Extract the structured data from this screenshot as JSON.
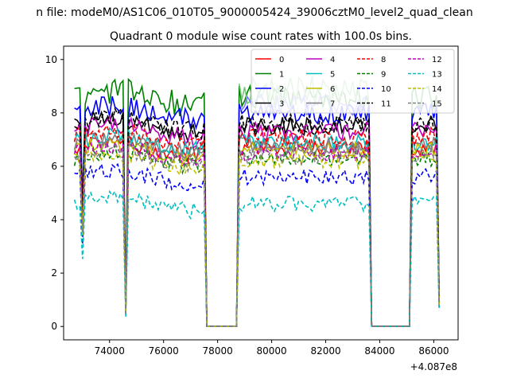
{
  "chart_data": {
    "type": "line",
    "suptitle": "n file: modeM0/AS1C06_010T05_9000005424_39006cztM0_level2_quad_clean",
    "title": "Quadrant 0 module wise count rates with 100.0s bins.",
    "xlabel": "",
    "ylabel": "",
    "x_offset_label": "+4.087e8",
    "xlim": [
      72300,
      86900
    ],
    "ylim": [
      -0.5,
      10.5
    ],
    "xticks": [
      74000,
      76000,
      78000,
      80000,
      82000,
      84000,
      86000
    ],
    "yticks": [
      0,
      2,
      4,
      6,
      8,
      10
    ],
    "legend_position": "upper right",
    "segments": [
      {
        "start": 72700,
        "end": 77500,
        "dips": [
          {
            "at": 73000,
            "frac": 0.55
          },
          {
            "at": 74600,
            "frac": 0.08
          }
        ]
      },
      {
        "start": 78800,
        "end": 83600,
        "dips": []
      },
      {
        "start": 85200,
        "end": 86200,
        "dips": [
          {
            "at": 86200,
            "frac": 0.13
          }
        ]
      }
    ],
    "gap_value": 0,
    "series": [
      {
        "name": "0",
        "color": "#ff0000",
        "dash": "solid",
        "level": 6.7,
        "amp": 0.3
      },
      {
        "name": "1",
        "color": "#008000",
        "dash": "solid",
        "level": 8.6,
        "amp": 0.5
      },
      {
        "name": "2",
        "color": "#0000ff",
        "dash": "solid",
        "level": 8.0,
        "amp": 0.4
      },
      {
        "name": "3",
        "color": "#000000",
        "dash": "solid",
        "level": 7.5,
        "amp": 0.35
      },
      {
        "name": "4",
        "color": "#bf00bf",
        "dash": "solid",
        "level": 7.3,
        "amp": 0.35
      },
      {
        "name": "5",
        "color": "#00bfbf",
        "dash": "solid",
        "level": 6.9,
        "amp": 0.3
      },
      {
        "name": "6",
        "color": "#bfbf00",
        "dash": "solid",
        "level": 6.6,
        "amp": 0.3
      },
      {
        "name": "7",
        "color": "#808080",
        "dash": "solid",
        "level": 6.8,
        "amp": 0.3
      },
      {
        "name": "8",
        "color": "#ff0000",
        "dash": "dashed",
        "level": 7.1,
        "amp": 0.35
      },
      {
        "name": "9",
        "color": "#008000",
        "dash": "dashed",
        "level": 6.3,
        "amp": 0.3
      },
      {
        "name": "10",
        "color": "#0000ff",
        "dash": "dashed",
        "level": 5.6,
        "amp": 0.3
      },
      {
        "name": "11",
        "color": "#000000",
        "dash": "dashed",
        "level": 7.6,
        "amp": 0.35
      },
      {
        "name": "12",
        "color": "#bf00bf",
        "dash": "dashed",
        "level": 6.5,
        "amp": 0.3
      },
      {
        "name": "13",
        "color": "#00bfbf",
        "dash": "dashed",
        "level": 4.6,
        "amp": 0.3
      },
      {
        "name": "14",
        "color": "#bfbf00",
        "dash": "dashed",
        "level": 6.2,
        "amp": 0.3
      },
      {
        "name": "15",
        "color": "#808080",
        "dash": "dashed",
        "level": 6.4,
        "amp": 0.35
      }
    ],
    "extra_lines": [
      {
        "color": "#7dc47d",
        "level": 8.8,
        "amp": 0.6,
        "segment": 1
      },
      {
        "color": "#7b7bff",
        "level": 8.3,
        "amp": 0.4,
        "segment": 1
      }
    ]
  }
}
